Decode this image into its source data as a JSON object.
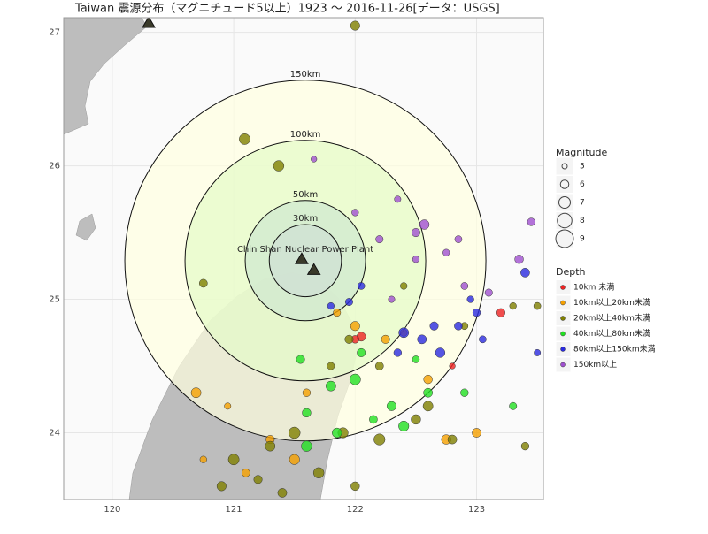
{
  "chart_data": {
    "type": "scatter",
    "title": "Taiwan 震源分布（マグニチュード5以上）1923 ～ 2016-11-26[データ：USGS]",
    "xlim": [
      119.6,
      123.55
    ],
    "ylim": [
      23.5,
      27.11
    ],
    "xticks": [
      120,
      121,
      122,
      123
    ],
    "yticks": [
      24,
      25,
      26,
      27
    ],
    "grid": true,
    "center": {
      "x": 121.59,
      "y": 25.29
    },
    "rings": [
      {
        "value": 150,
        "label": "150km",
        "fill": "#ffffe0"
      },
      {
        "value": 100,
        "label": "100km",
        "fill": "#e4fbc8"
      },
      {
        "value": 50,
        "label": "50km",
        "fill": "#cfe8d0"
      },
      {
        "value": 30,
        "label": "30km",
        "fill": "#cfe0d4"
      }
    ],
    "annotation": "Chin Shan Nuclear Power Plant",
    "markers": {
      "x": [
        121.56,
        121.66,
        120.3
      ],
      "values": [
        25.3,
        25.22,
        27.07
      ]
    },
    "size_legend": {
      "title": "Magnitude",
      "values": [
        5,
        6,
        7,
        8,
        9
      ]
    },
    "legend_title": "Depth",
    "series": [
      {
        "name": "10km 未満",
        "color": "#ee2222",
        "x": [
          122.05,
          122.0,
          123.2,
          122.8
        ],
        "values": [
          24.72,
          24.7,
          24.9,
          24.5
        ],
        "size": [
          6.2,
          5.8,
          6.0,
          5.2
        ]
      },
      {
        "name": "10km以上20km未満",
        "color": "#f5a000",
        "x": [
          120.69,
          121.3,
          121.6,
          122.0,
          122.25,
          122.75,
          121.1,
          120.75,
          122.6,
          121.85,
          122.4,
          123.0,
          121.5,
          120.95
        ],
        "values": [
          24.3,
          23.95,
          24.3,
          24.8,
          24.7,
          23.95,
          23.7,
          23.8,
          24.4,
          24.9,
          24.75,
          24.0,
          23.8,
          24.2
        ],
        "size": [
          6.5,
          6.0,
          5.8,
          6.3,
          6.0,
          6.4,
          5.9,
          5.5,
          6.1,
          5.7,
          5.6,
          6.2,
          6.6,
          5.4
        ]
      },
      {
        "name": "20km以上40km未満",
        "color": "#808000",
        "x": [
          121.0,
          121.3,
          121.5,
          121.9,
          122.2,
          122.5,
          122.8,
          121.2,
          120.9,
          121.7,
          122.6,
          123.4,
          122.0,
          121.4,
          122.2,
          121.95,
          121.8,
          122.9,
          123.3,
          121.37,
          121.09,
          120.75,
          122.0,
          122.4,
          123.5
        ],
        "values": [
          23.8,
          23.9,
          24.0,
          24.0,
          23.95,
          24.1,
          23.95,
          23.65,
          23.6,
          23.7,
          24.2,
          23.9,
          23.6,
          23.55,
          24.5,
          24.7,
          24.5,
          24.8,
          24.95,
          26.0,
          26.2,
          25.12,
          27.05,
          25.1,
          24.95
        ],
        "size": [
          6.8,
          6.5,
          7.0,
          6.6,
          6.9,
          6.4,
          6.2,
          6.0,
          6.3,
          6.7,
          6.5,
          5.8,
          6.1,
          6.2,
          5.9,
          6.0,
          5.7,
          5.6,
          5.5,
          6.7,
          6.8,
          5.9,
          6.3,
          5.5,
          5.6
        ]
      },
      {
        "name": "40km以上80km未満",
        "color": "#22e022",
        "x": [
          121.55,
          121.8,
          122.0,
          122.3,
          122.6,
          122.4,
          121.6,
          121.6,
          122.15,
          122.9,
          123.3,
          121.85,
          122.5,
          122.05
        ],
        "values": [
          24.55,
          24.35,
          24.4,
          24.2,
          24.3,
          24.05,
          24.15,
          23.9,
          24.1,
          24.3,
          24.2,
          24.0,
          24.55,
          24.6
        ],
        "size": [
          6.0,
          6.5,
          6.8,
          6.3,
          6.2,
          6.6,
          6.1,
          6.7,
          5.9,
          5.8,
          5.7,
          6.4,
          5.6,
          6.0
        ]
      },
      {
        "name": "80km以上150km未満",
        "color": "#2a2ae0",
        "x": [
          122.4,
          122.55,
          122.65,
          122.7,
          122.35,
          122.05,
          121.95,
          122.85,
          122.95,
          123.05,
          123.4,
          123.0,
          121.8,
          123.5
        ],
        "values": [
          24.75,
          24.7,
          24.8,
          24.6,
          24.6,
          25.1,
          24.98,
          24.8,
          25.0,
          24.7,
          25.2,
          24.9,
          24.95,
          24.6
        ],
        "size": [
          6.5,
          6.2,
          6.0,
          6.4,
          5.8,
          5.6,
          5.7,
          5.9,
          5.5,
          5.6,
          6.2,
          5.8,
          5.5,
          5.4
        ]
      },
      {
        "name": "150km以上",
        "color": "#a050d0",
        "x": [
          122.57,
          122.5,
          122.2,
          122.0,
          122.35,
          123.45,
          123.35,
          122.85,
          122.75,
          123.1,
          122.9,
          121.66,
          122.3,
          122.5
        ],
        "values": [
          25.56,
          25.5,
          25.45,
          25.65,
          25.75,
          25.58,
          25.3,
          25.45,
          25.35,
          25.05,
          25.1,
          26.05,
          25.0,
          25.3
        ],
        "size": [
          6.4,
          6.0,
          5.7,
          5.5,
          5.4,
          5.8,
          6.1,
          5.6,
          5.5,
          5.7,
          5.6,
          5.2,
          5.4,
          5.5
        ]
      }
    ]
  }
}
